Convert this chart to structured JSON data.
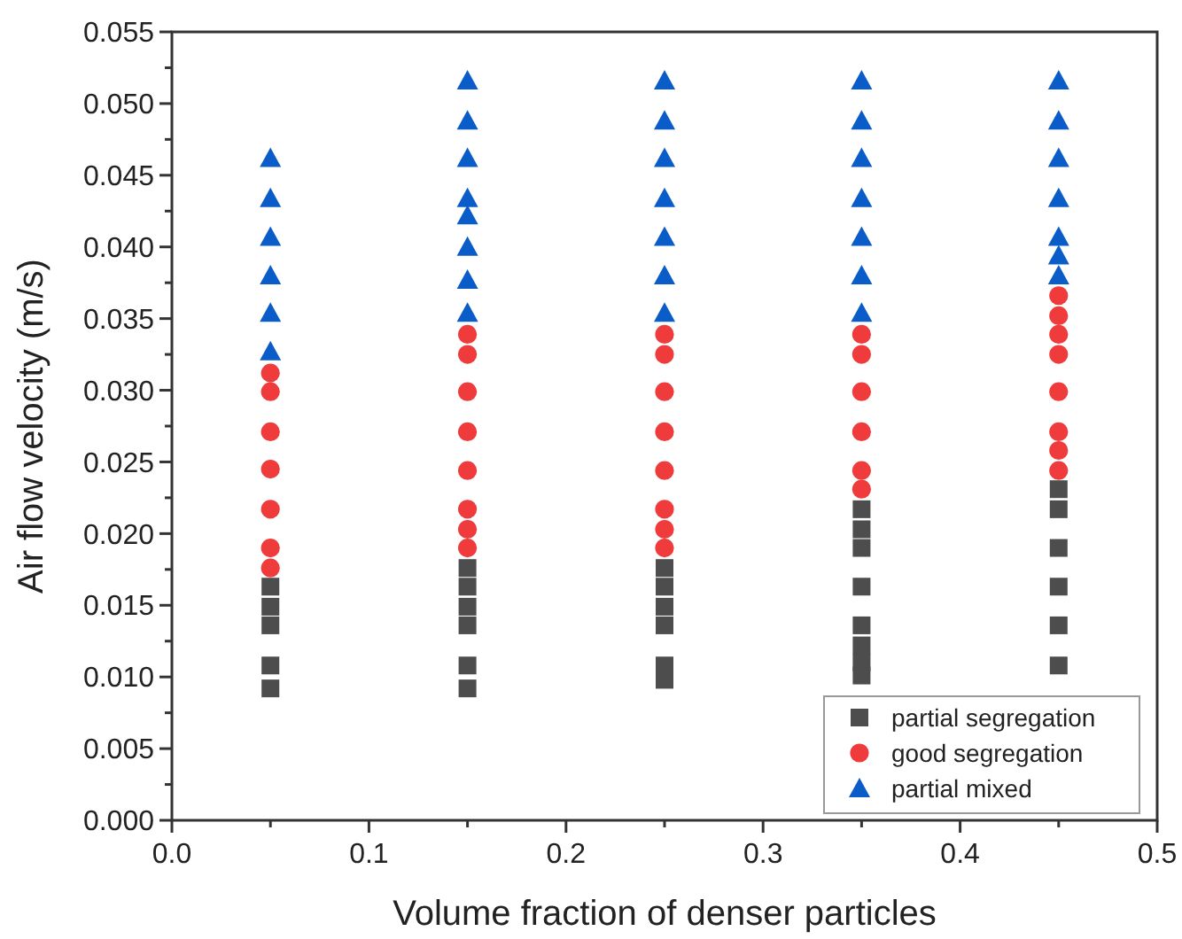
{
  "chart_data": {
    "type": "scatter",
    "xlabel": "Volume fraction of denser particles",
    "ylabel": "Air flow velocity (m/s)",
    "xlim": [
      0,
      0.5
    ],
    "ylim": [
      0,
      0.055
    ],
    "xticks": [
      {
        "value": 0,
        "label": "0.0"
      },
      {
        "value": 0.05,
        "label": null
      },
      {
        "value": 0.1,
        "label": "0.1"
      },
      {
        "value": 0.15,
        "label": null
      },
      {
        "value": 0.2,
        "label": "0.2"
      },
      {
        "value": 0.25,
        "label": null
      },
      {
        "value": 0.3,
        "label": "0.3"
      },
      {
        "value": 0.35,
        "label": null
      },
      {
        "value": 0.4,
        "label": "0.4"
      },
      {
        "value": 0.45,
        "label": null
      },
      {
        "value": 0.5,
        "label": "0.5"
      }
    ],
    "yticks": [
      {
        "value": 0,
        "label": "0.000"
      },
      {
        "value": 0.0025,
        "label": null
      },
      {
        "value": 0.005,
        "label": "0.005"
      },
      {
        "value": 0.0075,
        "label": null
      },
      {
        "value": 0.01,
        "label": "0.010"
      },
      {
        "value": 0.0125,
        "label": null
      },
      {
        "value": 0.015,
        "label": "0.015"
      },
      {
        "value": 0.0175,
        "label": null
      },
      {
        "value": 0.02,
        "label": "0.020"
      },
      {
        "value": 0.0225,
        "label": null
      },
      {
        "value": 0.025,
        "label": "0.025"
      },
      {
        "value": 0.0275,
        "label": null
      },
      {
        "value": 0.03,
        "label": "0.030"
      },
      {
        "value": 0.0325,
        "label": null
      },
      {
        "value": 0.035,
        "label": "0.035"
      },
      {
        "value": 0.0375,
        "label": null
      },
      {
        "value": 0.04,
        "label": "0.040"
      },
      {
        "value": 0.0425,
        "label": null
      },
      {
        "value": 0.045,
        "label": "0.045"
      },
      {
        "value": 0.0475,
        "label": null
      },
      {
        "value": 0.05,
        "label": "0.050"
      },
      {
        "value": 0.0525,
        "label": null
      },
      {
        "value": 0.055,
        "label": "0.055"
      }
    ],
    "legend": "bottom right",
    "series": [
      {
        "name": "partial segregation",
        "color": "#4d4d4d",
        "marker": "square",
        "x": [
          0.05,
          0.05,
          0.05,
          0.05,
          0.05,
          0.15,
          0.15,
          0.15,
          0.15,
          0.15,
          0.15,
          0.25,
          0.25,
          0.25,
          0.25,
          0.25,
          0.25,
          0.35,
          0.35,
          0.35,
          0.35,
          0.35,
          0.35,
          0.35,
          0.35,
          0.45,
          0.45,
          0.45,
          0.45,
          0.45,
          0.45
        ],
        "values": [
          0.0163,
          0.0149,
          0.0136,
          0.0108,
          0.0092,
          0.0176,
          0.0163,
          0.0149,
          0.0136,
          0.0108,
          0.0092,
          0.0176,
          0.0163,
          0.0149,
          0.0136,
          0.0108,
          0.0098,
          0.0217,
          0.0203,
          0.019,
          0.0163,
          0.0136,
          0.0122,
          0.011,
          0.0101,
          0.0231,
          0.0217,
          0.019,
          0.0163,
          0.0136,
          0.0108
        ]
      },
      {
        "name": "good segregation",
        "color": "#ef3b3b",
        "marker": "circle",
        "x": [
          0.05,
          0.05,
          0.05,
          0.05,
          0.05,
          0.05,
          0.05,
          0.15,
          0.15,
          0.15,
          0.15,
          0.15,
          0.15,
          0.15,
          0.15,
          0.25,
          0.25,
          0.25,
          0.25,
          0.25,
          0.25,
          0.25,
          0.25,
          0.35,
          0.35,
          0.35,
          0.35,
          0.35,
          0.35,
          0.45,
          0.45,
          0.45,
          0.45,
          0.45,
          0.45,
          0.45,
          0.45
        ],
        "values": [
          0.0312,
          0.0299,
          0.0271,
          0.0245,
          0.0217,
          0.019,
          0.0176,
          0.0339,
          0.0325,
          0.0299,
          0.0271,
          0.0244,
          0.0217,
          0.0203,
          0.019,
          0.0339,
          0.0325,
          0.0299,
          0.0271,
          0.0244,
          0.0217,
          0.0203,
          0.019,
          0.0339,
          0.0325,
          0.0299,
          0.0271,
          0.0244,
          0.0231,
          0.0366,
          0.0352,
          0.0339,
          0.0325,
          0.0299,
          0.0271,
          0.0258,
          0.0244
        ]
      },
      {
        "name": "partial mixed",
        "color": "#0a5cc8",
        "marker": "triangle",
        "x": [
          0.05,
          0.05,
          0.05,
          0.05,
          0.05,
          0.05,
          0.15,
          0.15,
          0.15,
          0.15,
          0.15,
          0.15,
          0.15,
          0.15,
          0.25,
          0.25,
          0.25,
          0.25,
          0.25,
          0.25,
          0.25,
          0.35,
          0.35,
          0.35,
          0.35,
          0.35,
          0.35,
          0.35,
          0.45,
          0.45,
          0.45,
          0.45,
          0.45,
          0.45,
          0.45
        ],
        "values": [
          0.0462,
          0.0434,
          0.0407,
          0.038,
          0.0354,
          0.0327,
          0.0516,
          0.0488,
          0.0462,
          0.0434,
          0.0422,
          0.04,
          0.0377,
          0.0354,
          0.0516,
          0.0488,
          0.0462,
          0.0434,
          0.0407,
          0.038,
          0.0354,
          0.0516,
          0.0488,
          0.0462,
          0.0434,
          0.0407,
          0.038,
          0.0354,
          0.0516,
          0.0488,
          0.0462,
          0.0434,
          0.0407,
          0.0394,
          0.038
        ]
      }
    ]
  }
}
